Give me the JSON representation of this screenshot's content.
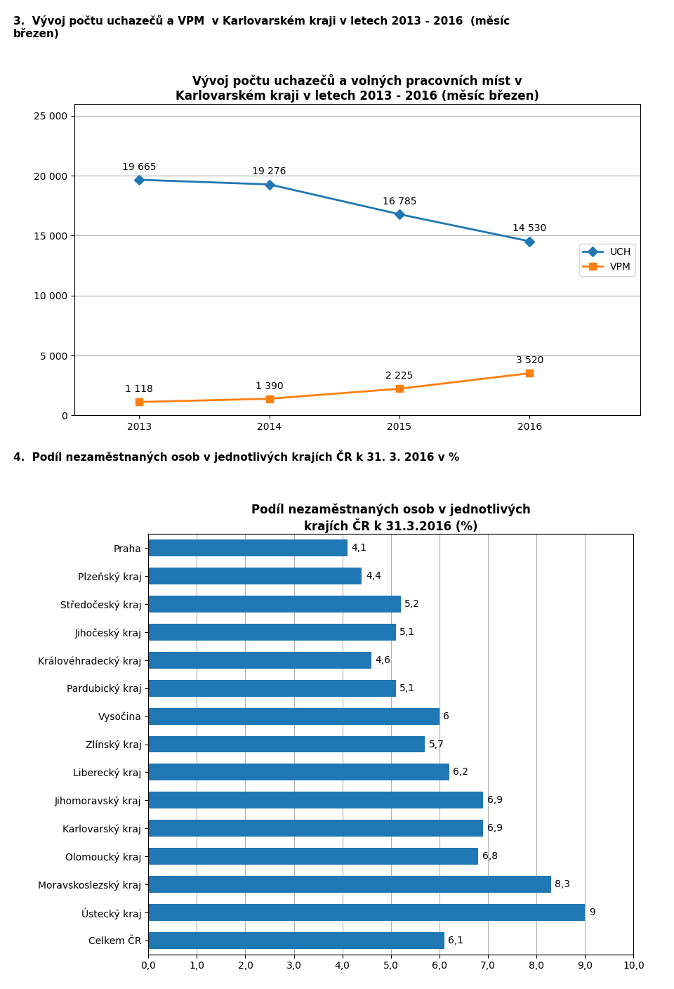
{
  "chart_data": [
    {
      "type": "line",
      "annotations": [
        "3.  Vývoj počtu uchazečů a VPM  v Karlovarském kraji v letech 2013 - 2016  (měsíc\nbřezen)"
      ],
      "title": "Vývoj počtu uchazečů a volných pracovních míst v\nKarlovarském kraji v letech 2013 - 2016 (měsíc březen)",
      "x": [
        2013,
        2014,
        2015,
        2016
      ],
      "series": [
        {
          "name": "UCH",
          "marker": "diamond",
          "values": [
            19665,
            19276,
            16785,
            14530
          ],
          "value_labels": [
            "19 665",
            "19 276",
            "16 785",
            "14 530"
          ]
        },
        {
          "name": "VPM",
          "marker": "square",
          "values": [
            1118,
            1390,
            2225,
            3520
          ],
          "value_labels": [
            "1 118",
            "1 390",
            "2 225",
            "3 520"
          ]
        }
      ],
      "xlim": [
        2012.5,
        2016.85
      ],
      "xticks": [
        2013,
        2014,
        2015,
        2016
      ],
      "ylim": [
        0,
        26000
      ],
      "yticks": [
        0,
        {
          "value": 5000,
          "label": "5 000"
        },
        {
          "value": 10000,
          "label": "10 000"
        },
        {
          "value": 15000,
          "label": "15 000"
        },
        {
          "value": 20000,
          "label": "20 000"
        },
        {
          "value": 25000,
          "label": "25 000"
        }
      ],
      "grid": true,
      "legend": "center right",
      "data_labels": true
    },
    {
      "type": "bar",
      "orientation": "horizontal",
      "annotations": [
        "4.  Podíl nezaměstnaných osob v jednotlivých krajích ČR k 31. 3. 2016 v %"
      ],
      "title": "Podíl nezaměstnaných osob v jednotlivých\nkrajích ČR k 31.3.2016 (%)",
      "categories": [
        "Praha",
        "Plzeňský kraj",
        "Středočeský kraj",
        "Jihočeský kraj",
        "Královéhradecký kraj",
        "Pardubický kraj",
        "Vysočina",
        "Zlínský kraj",
        "Liberecký kraj",
        "Jihomoravský kraj",
        "Karlovarský kraj",
        "Olomoucký kraj",
        "Moravskoslezský kraj",
        "Ústecký kraj",
        "Celkem ČR"
      ],
      "values": [
        4.1,
        4.4,
        5.2,
        5.1,
        4.6,
        5.1,
        6.0,
        5.7,
        6.2,
        6.9,
        6.9,
        6.8,
        8.3,
        9.0,
        6.1
      ],
      "value_labels": [
        "4,1",
        "4,4",
        "5,2",
        "5,1",
        "4,6",
        "5,1",
        "6",
        "5,7",
        "6,2",
        "6,9",
        "6,9",
        "6,8",
        "8,3",
        "9",
        "6,1"
      ],
      "xlim": [
        0,
        10.0
      ],
      "xticks": [
        {
          "value": 0.0,
          "label": "0,0"
        },
        {
          "value": 1.0,
          "label": "1,0"
        },
        {
          "value": 2.0,
          "label": "2,0"
        },
        {
          "value": 3.0,
          "label": "3,0"
        },
        {
          "value": 4.0,
          "label": "4,0"
        },
        {
          "value": 5.0,
          "label": "5,0"
        },
        {
          "value": 6.0,
          "label": "6,0"
        },
        {
          "value": 7.0,
          "label": "7,0"
        },
        {
          "value": 8.0,
          "label": "8,0"
        },
        {
          "value": 9.0,
          "label": "9,0"
        },
        {
          "value": 10.0,
          "label": "10,0"
        }
      ],
      "grid": true,
      "data_labels": true
    }
  ]
}
